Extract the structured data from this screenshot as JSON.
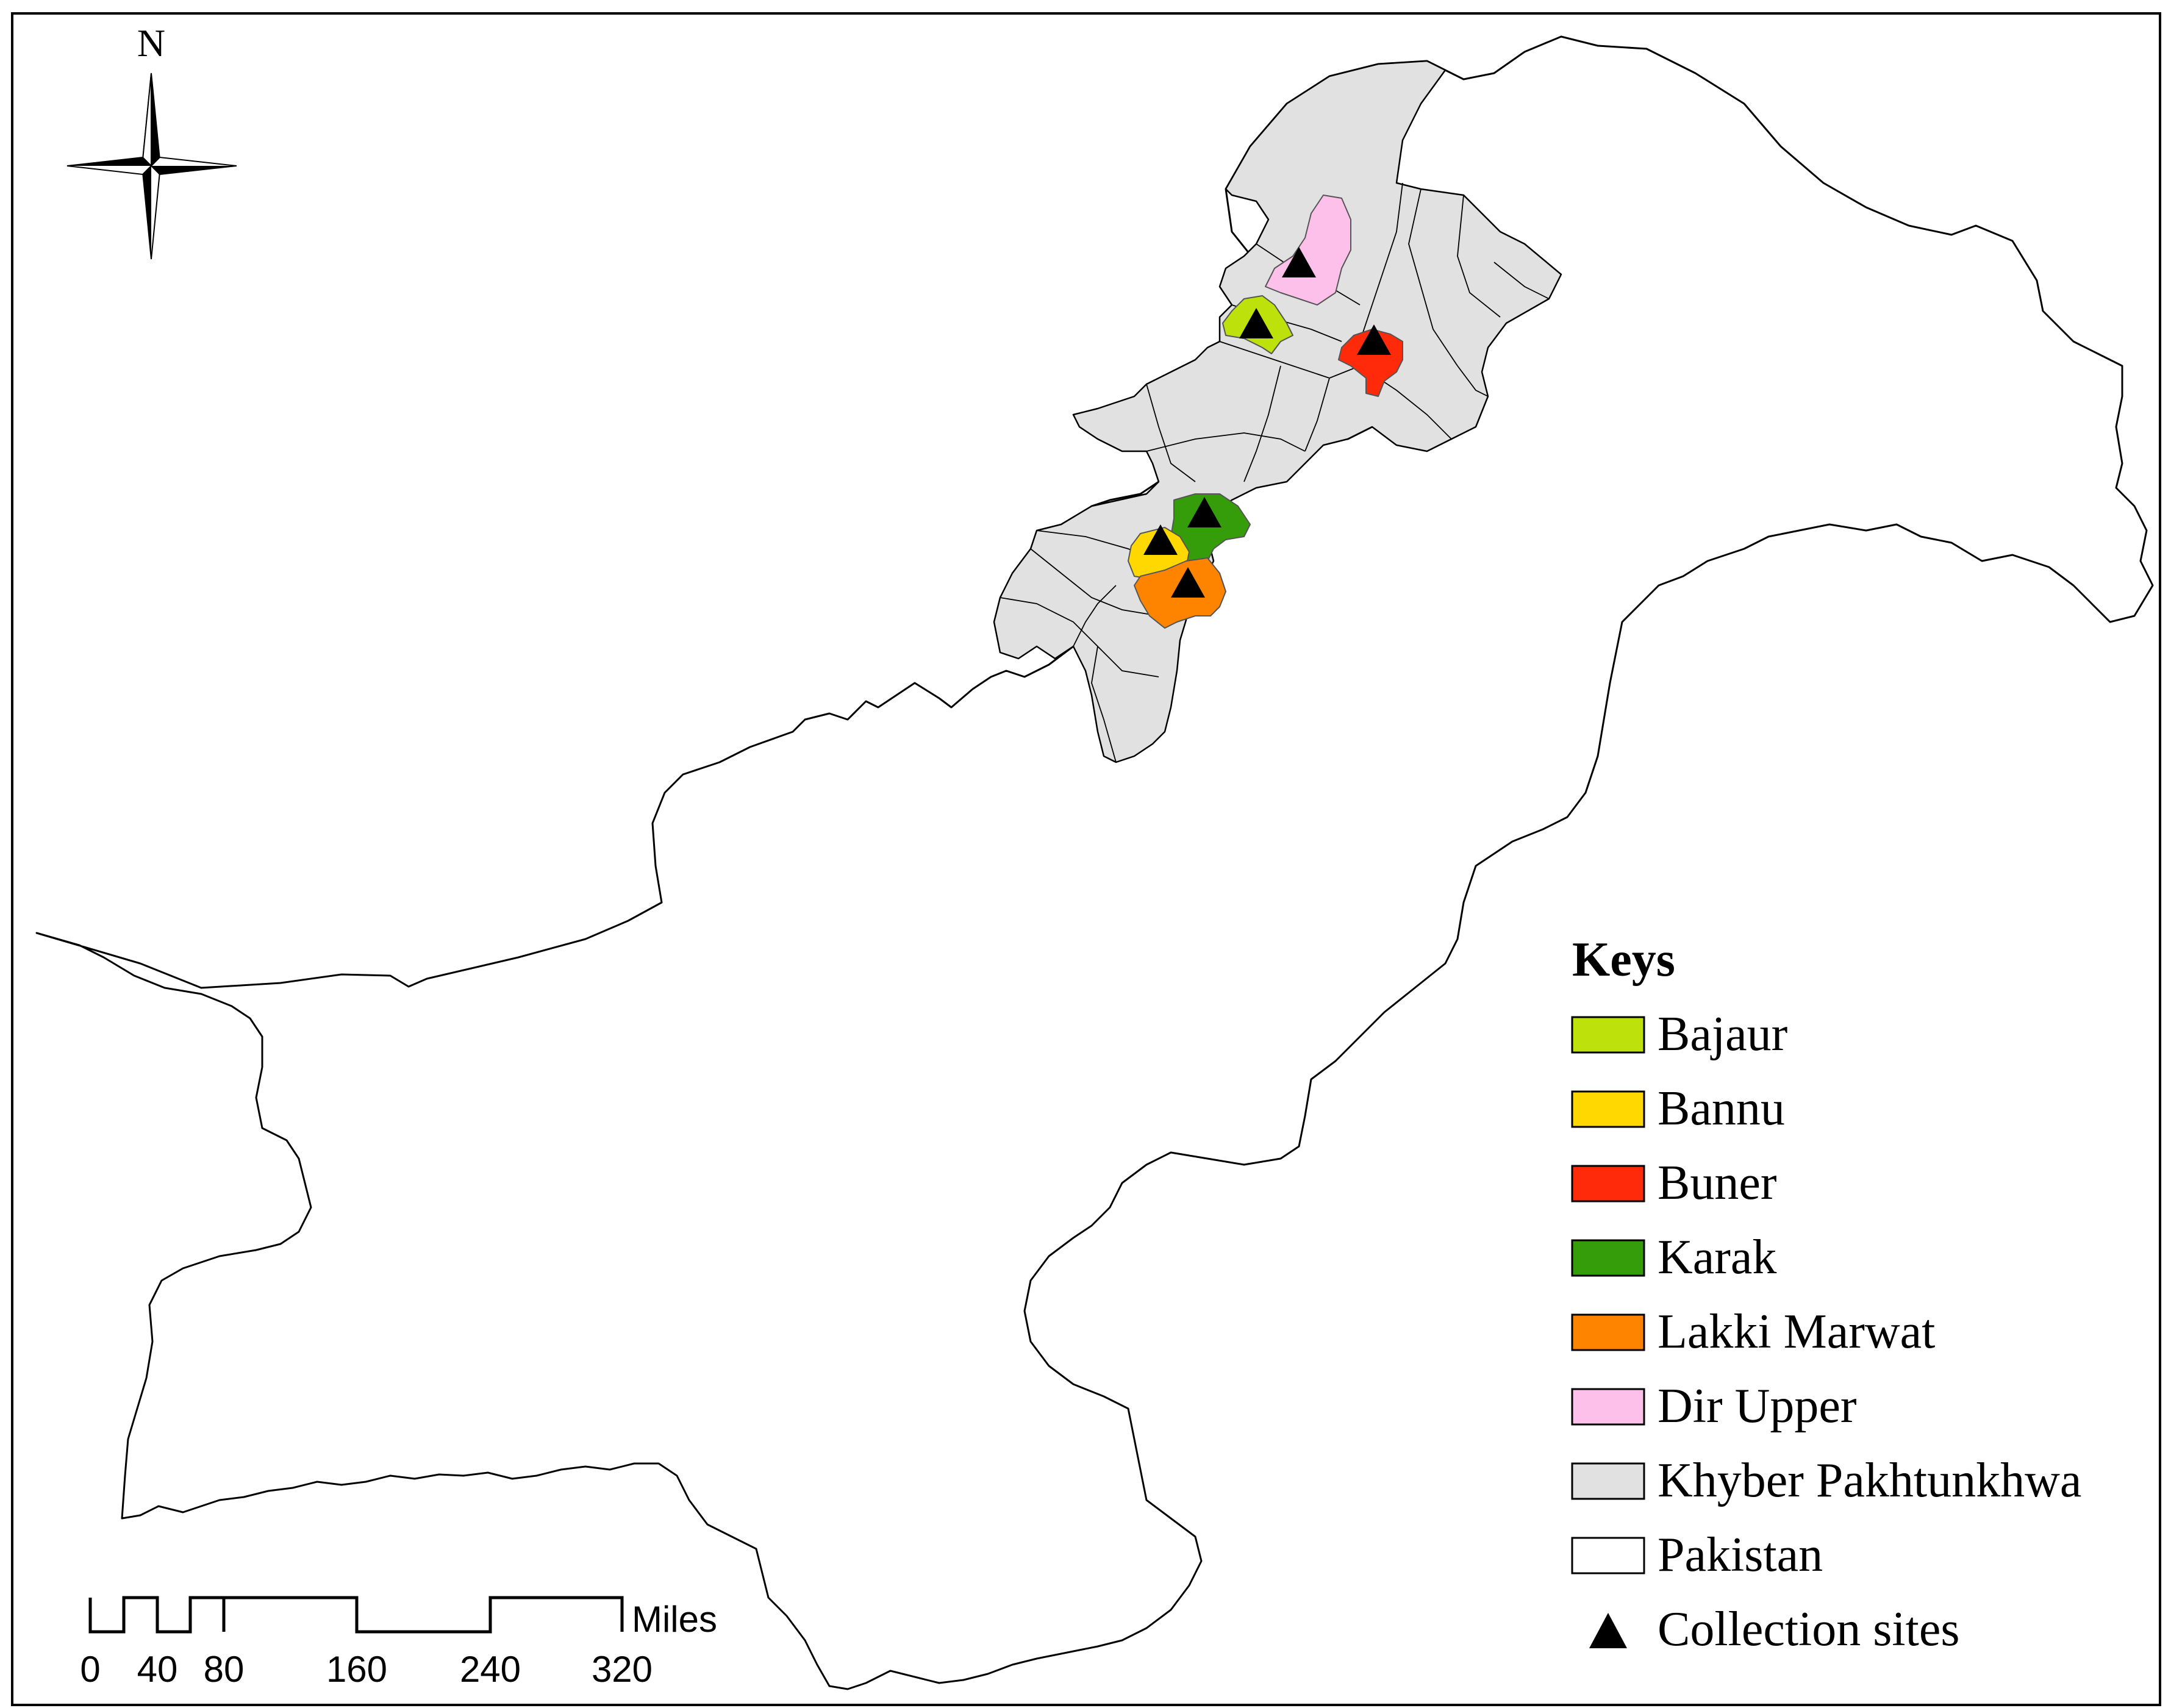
{
  "north_arrow": {
    "label": "N"
  },
  "legend": {
    "title": "Keys",
    "items": [
      {
        "label": "Bajaur",
        "color": "#bde10a"
      },
      {
        "label": "Bannu",
        "color": "#fed800"
      },
      {
        "label": "Buner",
        "color": "#fe2a0a"
      },
      {
        "label": "Karak",
        "color": "#369d0a"
      },
      {
        "label": "Lakki Marwat",
        "color": "#fe8400"
      },
      {
        "label": "Dir Upper",
        "color": "#fcc0ea"
      },
      {
        "label": "Khyber Pakhtunkhwa",
        "color": "#e1e1e1"
      },
      {
        "label": "Pakistan",
        "color": "#ffffff"
      }
    ],
    "sites_label": "Collection sites"
  },
  "scale_bar": {
    "unit": "Miles",
    "ticks": [
      "0",
      "40",
      "80",
      "160",
      "240",
      "320"
    ]
  }
}
